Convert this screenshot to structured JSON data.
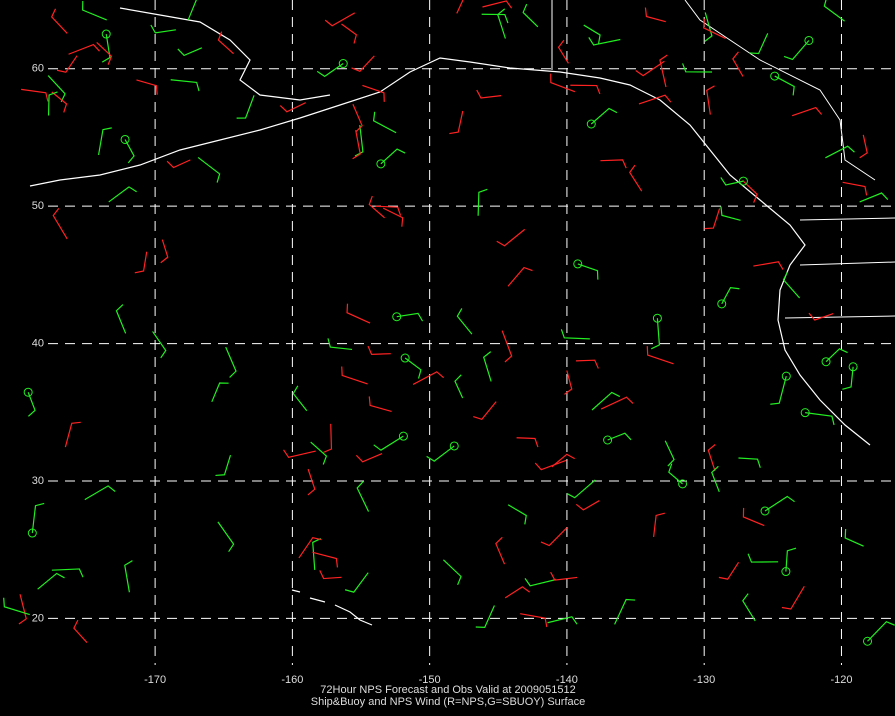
{
  "chart_data": {
    "type": "map",
    "title": "72Hour NPS Forecast and Obs Valid at 2009051512",
    "subtitle": "Ship&Buoy and NPS Wind (R=NPS,G=SBUOY) Surface",
    "xlim": [
      -181.3,
      -116.1
    ],
    "ylim": [
      12.9,
      65.0
    ],
    "xticks": [
      -170,
      -160,
      -150,
      -140,
      -130,
      -120
    ],
    "yticks": [
      20,
      30,
      40,
      50,
      60
    ],
    "grid": true
  }
}
